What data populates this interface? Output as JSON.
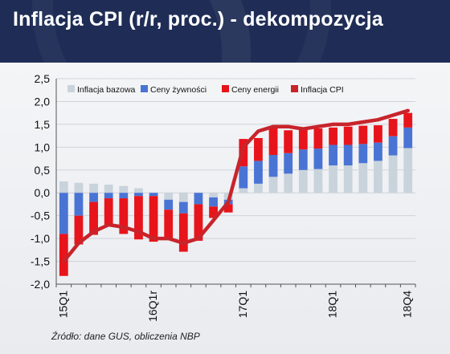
{
  "header": {
    "title": "Inflacja CPI (r/r, proc.) - dekompozycja"
  },
  "source": "Źródło: dane GUS, obliczenia NBP",
  "colors": {
    "header_bg": "#1f2d56",
    "core": "#c9d3dc",
    "food": "#4a74d4",
    "energy": "#e8141b",
    "cpi": "#c8242b"
  },
  "chart_data": {
    "type": "bar",
    "stacked": true,
    "ylim": [
      -2.0,
      2.5
    ],
    "yticks": [
      "2,5",
      "2,0",
      "1,5",
      "1,0",
      "0,5",
      "0,0",
      "-0,5",
      "-1,0",
      "-1,5",
      "-2,0"
    ],
    "ytick_values": [
      2.5,
      2.0,
      1.5,
      1.0,
      0.5,
      0.0,
      -0.5,
      -1.0,
      -1.5,
      -2.0
    ],
    "xtick_labels": [
      {
        "index": 0,
        "label": "15Q1"
      },
      {
        "index": 6,
        "label": "16Q1r"
      },
      {
        "index": 12,
        "label": "17Q1"
      },
      {
        "index": 18,
        "label": "18Q1"
      },
      {
        "index": 23,
        "label": "18Q4"
      }
    ],
    "n_periods": 24,
    "legend": {
      "placement": "top",
      "entries": [
        "Inflacja bazowa",
        "Ceny żywności",
        "Ceny energii",
        "Inflacja CPI"
      ]
    },
    "series": [
      {
        "name": "Inflacja bazowa",
        "kind": "bar",
        "values": [
          0.25,
          0.22,
          0.2,
          0.18,
          0.15,
          0.1,
          0.0,
          -0.15,
          -0.2,
          0.0,
          -0.1,
          -0.15,
          0.1,
          0.2,
          0.35,
          0.42,
          0.5,
          0.52,
          0.6,
          0.6,
          0.65,
          0.7,
          0.82,
          0.98
        ]
      },
      {
        "name": "Ceny żywności",
        "kind": "bar",
        "values": [
          -0.9,
          -0.5,
          -0.2,
          -0.12,
          -0.12,
          -0.07,
          -0.07,
          -0.22,
          -0.25,
          -0.25,
          -0.2,
          -0.1,
          0.48,
          0.5,
          0.48,
          0.45,
          0.45,
          0.45,
          0.45,
          0.45,
          0.42,
          0.4,
          0.42,
          0.45
        ]
      },
      {
        "name": "Ceny energii",
        "kind": "bar",
        "values": [
          -0.92,
          -0.63,
          -0.72,
          -0.58,
          -0.78,
          -0.95,
          -1.0,
          -0.62,
          -0.84,
          -0.8,
          -0.25,
          -0.18,
          0.6,
          0.5,
          0.58,
          0.5,
          0.45,
          0.44,
          0.38,
          0.4,
          0.4,
          0.38,
          0.38,
          0.32
        ]
      },
      {
        "name": "Inflacja CPI",
        "kind": "line",
        "values": [
          -1.5,
          -1.1,
          -0.85,
          -0.7,
          -0.75,
          -0.85,
          -1.0,
          -1.0,
          -1.1,
          -1.0,
          -0.6,
          -0.2,
          1.0,
          1.35,
          1.45,
          1.45,
          1.4,
          1.45,
          1.5,
          1.5,
          1.55,
          1.6,
          1.7,
          1.8
        ]
      }
    ]
  }
}
